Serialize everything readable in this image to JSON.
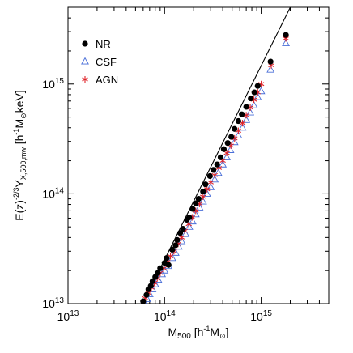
{
  "chart_data": {
    "type": "scatter",
    "x_scale": "log",
    "y_scale": "log",
    "xlim": [
      10000000000000.0,
      5000000000000000.0
    ],
    "ylim": [
      10000000000000.0,
      5000000000000000.0
    ],
    "x_ticks": [
      {
        "value": 10000000000000.0,
        "base": "10",
        "exp": "13"
      },
      {
        "value": 100000000000000.0,
        "base": "10",
        "exp": "14"
      },
      {
        "value": 1000000000000000.0,
        "base": "10",
        "exp": "15"
      }
    ],
    "y_ticks": [
      {
        "value": 10000000000000.0,
        "base": "10",
        "exp": "13"
      },
      {
        "value": 100000000000000.0,
        "base": "10",
        "exp": "14"
      },
      {
        "value": 1000000000000000.0,
        "base": "10",
        "exp": "15"
      }
    ],
    "xlabel": {
      "main": "M",
      "sub": "500",
      "bracket": " [h",
      "sup1": "-1",
      "unit": "M",
      "sun": "⊙",
      "close": "]"
    },
    "ylabel": {
      "pre": "E(z)",
      "sup": "-2/3",
      "main": "Y",
      "sub": "X,500,mw",
      "bracket": " [h",
      "sup1": "-1",
      "unit": "M",
      "sun": "⊙",
      "close": "keV]"
    },
    "legend_position": "top-left",
    "fit_line": {
      "points": [
        [
          50000000000000.0,
          7400000000000.0
        ],
        [
          2000000000000000.0,
          5000000000000000.0
        ]
      ],
      "color": "#000000"
    },
    "series": [
      {
        "name": "NR",
        "marker": "filled-circle",
        "color": "#000000",
        "points": [
          [
            60000000000000.0,
            10500000000000.0
          ],
          [
            65000000000000.0,
            12000000000000.0
          ],
          [
            68000000000000.0,
            13500000000000.0
          ],
          [
            72000000000000.0,
            14500000000000.0
          ],
          [
            75000000000000.0,
            16000000000000.0
          ],
          [
            80000000000000.0,
            17500000000000.0
          ],
          [
            85000000000000.0,
            19000000000000.0
          ],
          [
            90000000000000.0,
            21000000000000.0
          ],
          [
            100000000000000.0,
            23500000000000.0
          ],
          [
            105000000000000.0,
            26000000000000.0
          ],
          [
            110000000000000.0,
            22500000000000.0
          ],
          [
            120000000000000.0,
            31000000000000.0
          ],
          [
            130000000000000.0,
            34000000000000.0
          ],
          [
            135000000000000.0,
            38000000000000.0
          ],
          [
            145000000000000.0,
            44000000000000.0
          ],
          [
            155000000000000.0,
            48000000000000.0
          ],
          [
            170000000000000.0,
            58000000000000.0
          ],
          [
            180000000000000.0,
            61000000000000.0
          ],
          [
            195000000000000.0,
            73000000000000.0
          ],
          [
            210000000000000.0,
            82000000000000.0
          ],
          [
            225000000000000.0,
            90000000000000.0
          ],
          [
            250000000000000.0,
            105000000000000.0
          ],
          [
            265000000000000.0,
            122000000000000.0
          ],
          [
            295000000000000.0,
            145000000000000.0
          ],
          [
            320000000000000.0,
            165000000000000.0
          ],
          [
            350000000000000.0,
            185000000000000.0
          ],
          [
            380000000000000.0,
            215000000000000.0
          ],
          [
            410000000000000.0,
            255000000000000.0
          ],
          [
            450000000000000.0,
            290000000000000.0
          ],
          [
            490000000000000.0,
            330000000000000.0
          ],
          [
            530000000000000.0,
            390000000000000.0
          ],
          [
            580000000000000.0,
            460000000000000.0
          ],
          [
            630000000000000.0,
            530000000000000.0
          ],
          [
            700000000000000.0,
            620000000000000.0
          ],
          [
            780000000000000.0,
            740000000000000.0
          ],
          [
            850000000000000.0,
            840000000000000.0
          ],
          [
            920000000000000.0,
            960000000000000.0
          ],
          [
            1250000000000000.0,
            1600000000000000.0
          ],
          [
            1800000000000000.0,
            2800000000000000.0
          ]
        ]
      },
      {
        "name": "CSF",
        "marker": "open-triangle",
        "color": "#4a6fd8",
        "points": [
          [
            62000000000000.0,
            10000000000000.0
          ],
          [
            66000000000000.0,
            11000000000000.0
          ],
          [
            70000000000000.0,
            12200000000000.0
          ],
          [
            75000000000000.0,
            13500000000000.0
          ],
          [
            80000000000000.0,
            15000000000000.0
          ],
          [
            86000000000000.0,
            16500000000000.0
          ],
          [
            94000000000000.0,
            18500000000000.0
          ],
          [
            100000000000000.0,
            20000000000000.0
          ],
          [
            110000000000000.0,
            22000000000000.0
          ],
          [
            120000000000000.0,
            26000000000000.0
          ],
          [
            130000000000000.0,
            29000000000000.0
          ],
          [
            140000000000000.0,
            33000000000000.0
          ],
          [
            150000000000000.0,
            37000000000000.0
          ],
          [
            165000000000000.0,
            43000000000000.0
          ],
          [
            180000000000000.0,
            50000000000000.0
          ],
          [
            195000000000000.0,
            56000000000000.0
          ],
          [
            210000000000000.0,
            65000000000000.0
          ],
          [
            230000000000000.0,
            75000000000000.0
          ],
          [
            250000000000000.0,
            85000000000000.0
          ],
          [
            275000000000000.0,
            100000000000000.0
          ],
          [
            300000000000000.0,
            115000000000000.0
          ],
          [
            330000000000000.0,
            135000000000000.0
          ],
          [
            360000000000000.0,
            155000000000000.0
          ],
          [
            400000000000000.0,
            185000000000000.0
          ],
          [
            440000000000000.0,
            215000000000000.0
          ],
          [
            480000000000000.0,
            250000000000000.0
          ],
          [
            530000000000000.0,
            295000000000000.0
          ],
          [
            580000000000000.0,
            340000000000000.0
          ],
          [
            640000000000000.0,
            400000000000000.0
          ],
          [
            700000000000000.0,
            470000000000000.0
          ],
          [
            770000000000000.0,
            550000000000000.0
          ],
          [
            840000000000000.0,
            640000000000000.0
          ],
          [
            920000000000000.0,
            760000000000000.0
          ],
          [
            1000000000000000.0,
            860000000000000.0
          ],
          [
            1250000000000000.0,
            1350000000000000.0
          ],
          [
            1800000000000000.0,
            2350000000000000.0
          ]
        ]
      },
      {
        "name": "AGN",
        "marker": "asterisk",
        "color": "#e0242a",
        "points": [
          [
            63000000000000.0,
            11200000000000.0
          ],
          [
            68000000000000.0,
            12500000000000.0
          ],
          [
            73000000000000.0,
            14000000000000.0
          ],
          [
            78000000000000.0,
            15500000000000.0
          ],
          [
            84000000000000.0,
            17000000000000.0
          ],
          [
            90000000000000.0,
            19000000000000.0
          ],
          [
            98000000000000.0,
            21000000000000.0
          ],
          [
            107000000000000.0,
            24000000000000.0
          ],
          [
            115000000000000.0,
            27000000000000.0
          ],
          [
            125000000000000.0,
            30000000000000.0
          ],
          [
            138000000000000.0,
            35000000000000.0
          ],
          [
            150000000000000.0,
            40000000000000.0
          ],
          [
            162000000000000.0,
            46000000000000.0
          ],
          [
            178000000000000.0,
            53000000000000.0
          ],
          [
            193000000000000.0,
            61000000000000.0
          ],
          [
            210000000000000.0,
            70000000000000.0
          ],
          [
            230000000000000.0,
            81000000000000.0
          ],
          [
            250000000000000.0,
            94000000000000.0
          ],
          [
            275000000000000.0,
            110000000000000.0
          ],
          [
            300000000000000.0,
            127000000000000.0
          ],
          [
            330000000000000.0,
            148000000000000.0
          ],
          [
            365000000000000.0,
            172000000000000.0
          ],
          [
            400000000000000.0,
            200000000000000.0
          ],
          [
            440000000000000.0,
            235000000000000.0
          ],
          [
            485000000000000.0,
            275000000000000.0
          ],
          [
            530000000000000.0,
            320000000000000.0
          ],
          [
            580000000000000.0,
            375000000000000.0
          ],
          [
            640000000000000.0,
            440000000000000.0
          ],
          [
            700000000000000.0,
            520000000000000.0
          ],
          [
            770000000000000.0,
            610000000000000.0
          ],
          [
            840000000000000.0,
            720000000000000.0
          ],
          [
            920000000000000.0,
            840000000000000.0
          ],
          [
            1000000000000000.0,
            1000000000000000.0
          ],
          [
            1270000000000000.0,
            1480000000000000.0
          ],
          [
            1800000000000000.0,
            2600000000000000.0
          ]
        ]
      }
    ]
  }
}
